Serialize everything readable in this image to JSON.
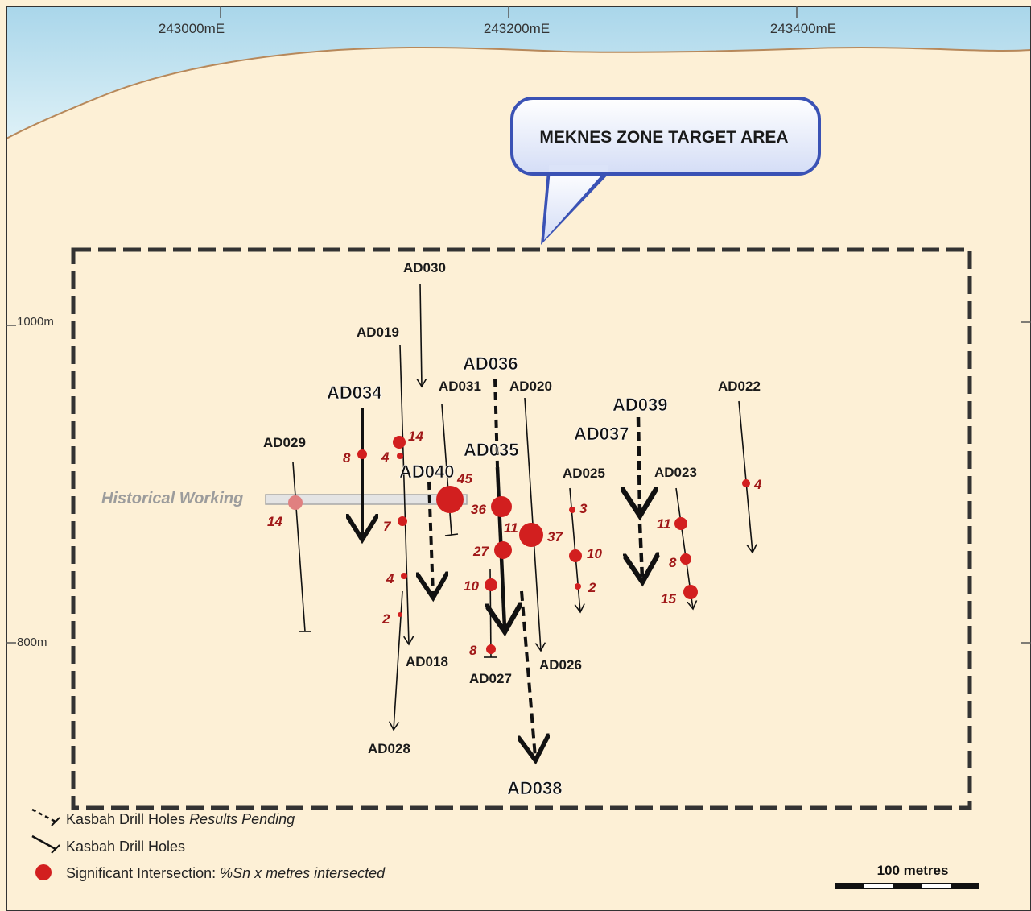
{
  "colors": {
    "sky": "#c6e3ef",
    "ground": "#fdf0d6",
    "intersection": "#d21f1f",
    "value_text": "#a01818",
    "callout_fill": "#e8eefc",
    "callout_border": "#3a52b5",
    "historical_working": "#9c9c9c"
  },
  "eastings": [
    "243000mE",
    "243200mE",
    "243400mE"
  ],
  "elevations": [
    "1000m",
    "800m"
  ],
  "callout": {
    "label": "MEKNES ZONE TARGET AREA"
  },
  "historical_working": {
    "label": "Historical Working"
  },
  "drill_holes": [
    {
      "id": "AD029",
      "status": "complete"
    },
    {
      "id": "AD019",
      "status": "complete"
    },
    {
      "id": "AD030",
      "status": "complete"
    },
    {
      "id": "AD034",
      "status": "complete",
      "emphasis": true
    },
    {
      "id": "AD036",
      "status": "pending",
      "emphasis": true
    },
    {
      "id": "AD031",
      "status": "complete"
    },
    {
      "id": "AD020",
      "status": "complete"
    },
    {
      "id": "AD035",
      "status": "complete",
      "emphasis": true
    },
    {
      "id": "AD040",
      "status": "pending",
      "emphasis": true
    },
    {
      "id": "AD039",
      "status": "pending",
      "emphasis": true
    },
    {
      "id": "AD037",
      "status": "pending",
      "emphasis": true
    },
    {
      "id": "AD022",
      "status": "complete"
    },
    {
      "id": "AD025",
      "status": "complete"
    },
    {
      "id": "AD023",
      "status": "complete"
    },
    {
      "id": "AD018",
      "status": "complete"
    },
    {
      "id": "AD027",
      "status": "complete"
    },
    {
      "id": "AD026",
      "status": "complete"
    },
    {
      "id": "AD028",
      "status": "complete"
    },
    {
      "id": "AD038",
      "status": "pending",
      "emphasis": true
    }
  ],
  "intersection_values": [
    "14",
    "8",
    "14",
    "4",
    "7",
    "4",
    "2",
    "45",
    "36",
    "11",
    "27",
    "10",
    "8",
    "37",
    "3",
    "10",
    "2",
    "11",
    "8",
    "15",
    "4"
  ],
  "legend": {
    "pending_prefix": "Kasbah Drill Holes ",
    "pending_suffix": "Results Pending",
    "complete": "Kasbah Drill Holes",
    "intersection_prefix": "Significant Intersection: ",
    "intersection_suffix": "%Sn x metres intersected"
  },
  "scale_bar": {
    "label": "100 metres"
  }
}
